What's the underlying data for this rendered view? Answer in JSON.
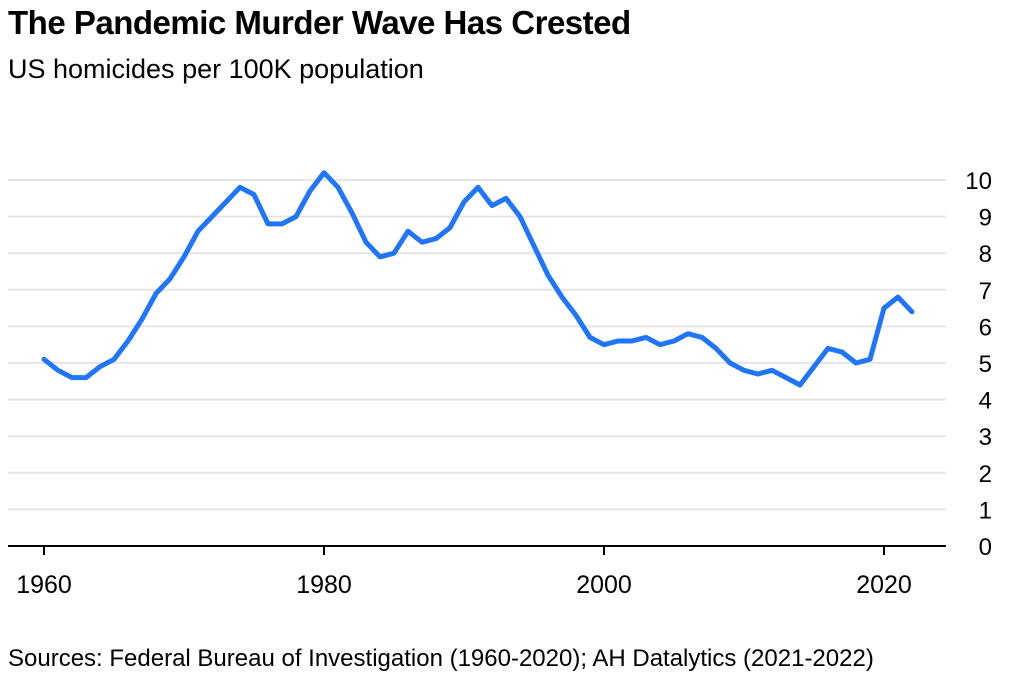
{
  "header": {
    "title": "The Pandemic Murder Wave Has Crested",
    "subtitle": "US homicides per 100K population"
  },
  "footer": {
    "source": "Sources: Federal Bureau of Investigation (1960-2020); AH Datalytics (2021-2022)"
  },
  "colors": {
    "line": "#1f75fe",
    "grid": "#e6e6e6",
    "axis": "#000000",
    "text": "#000000"
  },
  "chart_data": {
    "type": "line",
    "title": "The Pandemic Murder Wave Has Crested",
    "subtitle": "US homicides per 100K population",
    "xlabel": "",
    "ylabel": "",
    "xlim": [
      1958.8,
      2024.4
    ],
    "ylim": [
      0,
      10
    ],
    "x_ticks": [
      1960,
      1980,
      2000,
      2020
    ],
    "y_ticks": [
      0,
      1,
      2,
      3,
      4,
      5,
      6,
      7,
      8,
      9,
      10
    ],
    "y_axis_side": "right",
    "grid": "horizontal",
    "series": [
      {
        "x": [
          1960,
          1961,
          1962,
          1963,
          1964,
          1965,
          1966,
          1967,
          1968,
          1969,
          1970,
          1971,
          1972,
          1973,
          1974,
          1975,
          1976,
          1977,
          1978,
          1979,
          1980,
          1981,
          1982,
          1983,
          1984,
          1985,
          1986,
          1987,
          1988,
          1989,
          1990,
          1991,
          1992,
          1993,
          1994,
          1995,
          1996,
          1997,
          1998,
          1999,
          2000,
          2001,
          2002,
          2003,
          2004,
          2005,
          2006,
          2007,
          2008,
          2009,
          2010,
          2011,
          2012,
          2013,
          2014,
          2015,
          2016,
          2017,
          2018,
          2019,
          2020,
          2021,
          2022
        ],
        "values": [
          5.1,
          4.8,
          4.6,
          4.6,
          4.9,
          5.1,
          5.6,
          6.2,
          6.9,
          7.3,
          7.9,
          8.6,
          9.0,
          9.4,
          9.8,
          9.6,
          8.8,
          8.8,
          9.0,
          9.7,
          10.2,
          9.8,
          9.1,
          8.3,
          7.9,
          8.0,
          8.6,
          8.3,
          8.4,
          8.7,
          9.4,
          9.8,
          9.3,
          9.5,
          9.0,
          8.2,
          7.4,
          6.8,
          6.3,
          5.7,
          5.5,
          5.6,
          5.6,
          5.7,
          5.5,
          5.6,
          5.8,
          5.7,
          5.4,
          5.0,
          4.8,
          4.7,
          4.8,
          4.6,
          4.4,
          4.9,
          5.4,
          5.3,
          5.0,
          5.1,
          6.5,
          6.8,
          6.4
        ]
      }
    ],
    "source": "Sources: Federal Bureau of Investigation (1960-2020); AH Datalytics (2021-2022)"
  }
}
